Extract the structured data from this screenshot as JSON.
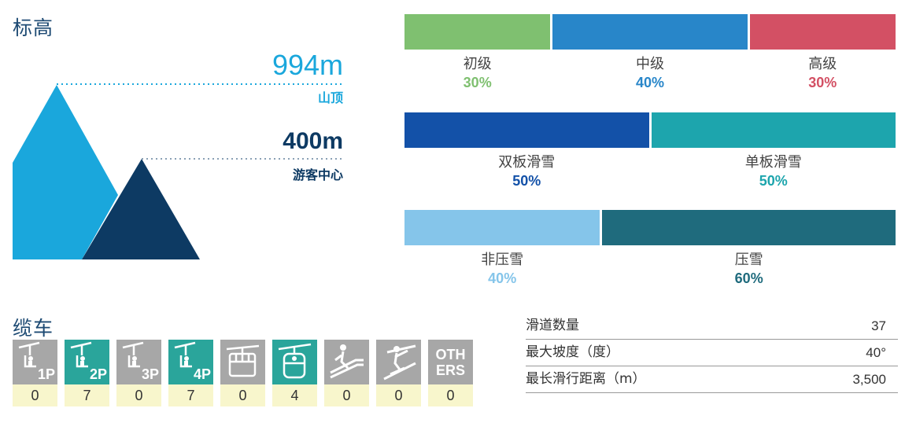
{
  "elevation": {
    "title": "标高",
    "summit": {
      "value": "994m",
      "label": "山顶"
    },
    "base": {
      "value": "400m",
      "label": "游客中心"
    },
    "colors": {
      "summit": "#1aa7dc",
      "base": "#0d3a63"
    }
  },
  "lifts": {
    "title": "缆车",
    "items": [
      {
        "icon": "chairlift-icon",
        "caption": "1P",
        "count": "0",
        "color": "#a7a7a7"
      },
      {
        "icon": "chairlift-icon",
        "caption": "2P",
        "count": "7",
        "color": "#2aa59b"
      },
      {
        "icon": "chairlift-icon",
        "caption": "3P",
        "count": "0",
        "color": "#a7a7a7"
      },
      {
        "icon": "chairlift-icon",
        "caption": "4P",
        "count": "7",
        "color": "#2aa59b"
      },
      {
        "icon": "ropeway-icon",
        "caption": "",
        "count": "0",
        "color": "#a7a7a7"
      },
      {
        "icon": "gondola-icon",
        "caption": "",
        "count": "4",
        "color": "#2aa59b"
      },
      {
        "icon": "magic-carpet-icon",
        "caption": "",
        "count": "0",
        "color": "#a7a7a7"
      },
      {
        "icon": "surface-lift-icon",
        "caption": "",
        "count": "0",
        "color": "#a7a7a7"
      },
      {
        "icon": "others-icon",
        "caption": "OTH ERS",
        "count": "0",
        "color": "#a7a7a7"
      }
    ]
  },
  "stats": [
    {
      "label": "滑道数量",
      "value": "37"
    },
    {
      "label": "最大坡度（度）",
      "value": "40°"
    },
    {
      "label": "最长滑行距离（m）",
      "value": "3,500"
    }
  ],
  "chart_data": [
    {
      "type": "bar",
      "categories": [
        "初级",
        "中级",
        "高级"
      ],
      "values": [
        30,
        40,
        30
      ],
      "labels": [
        "30%",
        "40%",
        "30%"
      ],
      "colors": [
        "#7fc070",
        "#2886c9",
        "#d35064"
      ]
    },
    {
      "type": "bar",
      "categories": [
        "双板滑雪",
        "单板滑雪"
      ],
      "values": [
        50,
        50
      ],
      "labels": [
        "50%",
        "50%"
      ],
      "colors": [
        "#1351a8",
        "#1da5ad"
      ]
    },
    {
      "type": "bar",
      "categories": [
        "非压雪",
        "压雪"
      ],
      "values": [
        40,
        60
      ],
      "labels": [
        "40%",
        "60%"
      ],
      "colors": [
        "#85c5ea",
        "#1f6b7d"
      ]
    }
  ]
}
